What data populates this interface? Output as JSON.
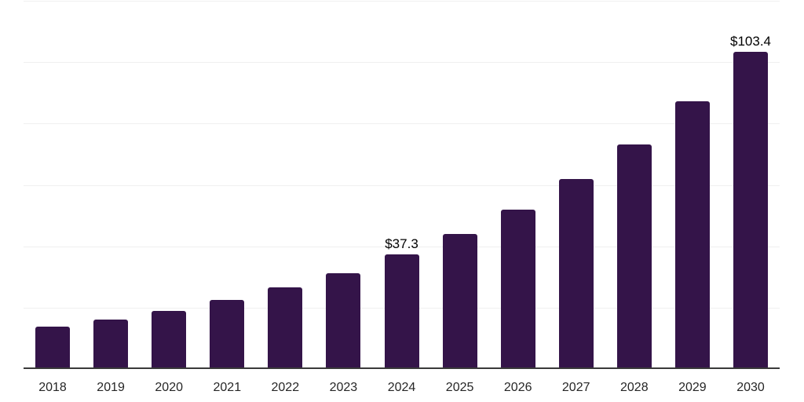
{
  "chart": {
    "background": "#ffffff",
    "bar_color": "#341449",
    "grid_color": "#f0f0f0",
    "axis_color": "#3a3a3a",
    "tick_label_color": "#262626",
    "value_label_color": "#000000"
  },
  "chart_data": {
    "type": "bar",
    "title": "",
    "xlabel": "",
    "ylabel": "",
    "categories": [
      "2018",
      "2019",
      "2020",
      "2021",
      "2022",
      "2023",
      "2024",
      "2025",
      "2026",
      "2027",
      "2028",
      "2029",
      "2030"
    ],
    "values": [
      13.8,
      16.1,
      18.9,
      22.5,
      26.6,
      31.2,
      37.3,
      44.0,
      51.9,
      61.9,
      73.2,
      87.2,
      103.4
    ],
    "value_labels": [
      {
        "category": "2024",
        "text": "$37.3"
      },
      {
        "category": "2030",
        "text": "$103.4"
      }
    ],
    "ylim": [
      0,
      120
    ],
    "grid_step": 20,
    "grid": "horizontal-only",
    "legend": "none",
    "y_axis_tick_labels_visible": false
  }
}
